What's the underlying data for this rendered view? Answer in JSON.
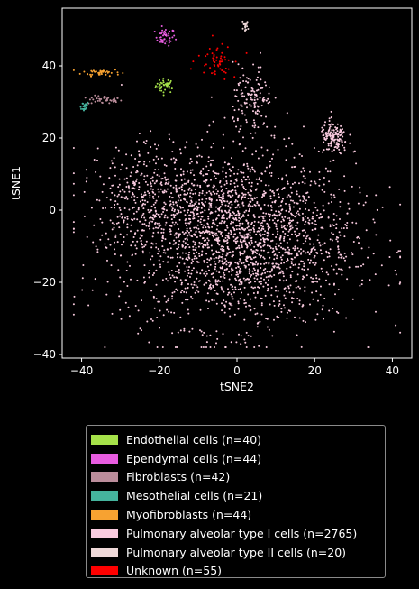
{
  "chart_data": {
    "type": "scatter",
    "xlabel": "tSNE2",
    "ylabel": "tSNE1",
    "xlim": [
      -45,
      45
    ],
    "ylim": [
      -41,
      56
    ],
    "xticks": [
      -40,
      -20,
      0,
      20,
      40
    ],
    "yticks": [
      -40,
      -20,
      0,
      20,
      40
    ],
    "grid": false,
    "legend_placement": "below",
    "series": [
      {
        "name": "Endothelial cells (n=40)",
        "color": "#a6e24a",
        "count": 40,
        "clusters": [
          {
            "cx": -18.5,
            "cy": 34.5,
            "sx": 1.2,
            "sy": 1.0
          }
        ]
      },
      {
        "name": "Ependymal cells (n=44)",
        "color": "#e85ce0",
        "count": 44,
        "clusters": [
          {
            "cx": -18.5,
            "cy": 48,
            "sx": 1.3,
            "sy": 1.2
          }
        ]
      },
      {
        "name": "Fibroblasts (n=42)",
        "color": "#bb8d9b",
        "count": 42,
        "clusters": [
          {
            "cx": -34,
            "cy": 30.5,
            "sx": 2.2,
            "sy": 0.6
          }
        ]
      },
      {
        "name": "Mesothelial cells (n=21)",
        "color": "#45b39d",
        "count": 21,
        "clusters": [
          {
            "cx": -39.5,
            "cy": 28.8,
            "sx": 0.7,
            "sy": 0.7
          }
        ]
      },
      {
        "name": "Myofibroblasts (n=44)",
        "color": "#f7a231",
        "count": 44,
        "clusters": [
          {
            "cx": -35,
            "cy": 38.2,
            "sx": 2.5,
            "sy": 0.5
          }
        ]
      },
      {
        "name": "Pulmonary alveolar type I cells (n=2765)",
        "color": "#f9cbdf",
        "count": 2765,
        "clusters": [
          {
            "cx": 0,
            "cy": -8,
            "sx": 15,
            "sy": 12,
            "w": 0.78
          },
          {
            "cx": -22,
            "cy": 4,
            "sx": 7,
            "sy": 7,
            "w": 0.12
          },
          {
            "cx": 4,
            "cy": 30,
            "sx": 2.5,
            "sy": 5,
            "w": 0.05
          },
          {
            "cx": 25,
            "cy": 20,
            "sx": 1.8,
            "sy": 2.2,
            "w": 0.05
          }
        ]
      },
      {
        "name": "Pulmonary alveolar type II cells (n=20)",
        "color": "#efd9d9",
        "count": 20,
        "clusters": [
          {
            "cx": 2,
            "cy": 51,
            "sx": 0.5,
            "sy": 0.6
          }
        ]
      },
      {
        "name": "Unknown (n=55)",
        "color": "#ff0000",
        "count": 55,
        "clusters": [
          {
            "cx": -5,
            "cy": 42,
            "sx": 2.5,
            "sy": 2.5
          }
        ]
      }
    ]
  }
}
